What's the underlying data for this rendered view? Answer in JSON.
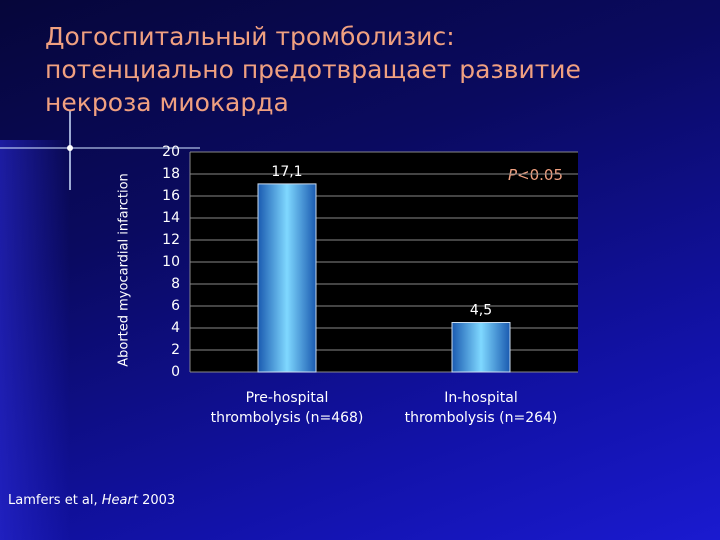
{
  "chart_data": {
    "type": "bar",
    "title": [
      "Догоспитальный тромболизис:",
      "потенциально предотвращает развитие",
      "некроза миокарда"
    ],
    "y_label": "Aborted myocardial infarction",
    "categories": [
      "Pre-hospital\nthrombolysis (n=468)",
      "In-hospital\nthrombolysis (n=264)"
    ],
    "values": [
      17.1,
      4.5
    ],
    "value_labels": [
      "17,1",
      "4,5"
    ],
    "color": "#4ab8f0",
    "ylim": [
      0,
      20
    ],
    "yticks": [
      0,
      2,
      4,
      6,
      8,
      10,
      12,
      14,
      16,
      18,
      20
    ],
    "grid": true,
    "annotation": [
      "P",
      "<0.05"
    ],
    "source": [
      "Lamfers et al, ",
      "Heart",
      " 2003"
    ]
  }
}
